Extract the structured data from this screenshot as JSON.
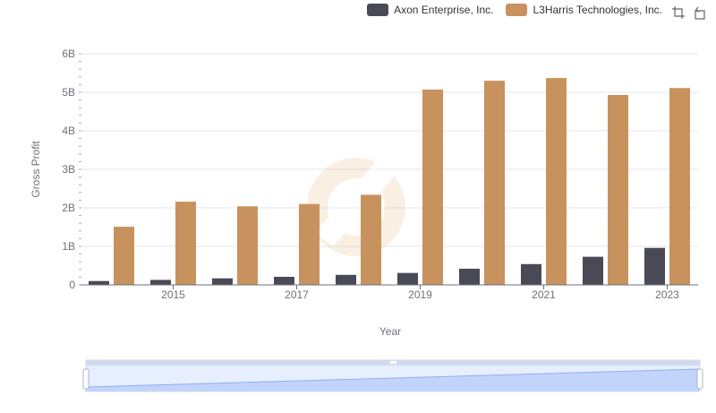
{
  "chart_data": {
    "type": "bar",
    "xlabel": "Year",
    "ylabel": "Gross Profit",
    "categories": [
      "2014",
      "2015",
      "2016",
      "2017",
      "2018",
      "2019",
      "2020",
      "2021",
      "2022",
      "2023"
    ],
    "x_tick_labels": [
      "2015",
      "2017",
      "2019",
      "2021",
      "2023"
    ],
    "y_tick_labels": [
      "0",
      "1B",
      "2B",
      "3B",
      "4B",
      "5B",
      "6B"
    ],
    "ylim": [
      0,
      6000000000
    ],
    "grid": true,
    "legend_position": "top-right",
    "series": [
      {
        "name": "Axon Enterprise, Inc.",
        "color": "#4a4a56",
        "values": [
          100000000,
          130000000,
          170000000,
          210000000,
          260000000,
          310000000,
          420000000,
          540000000,
          730000000,
          960000000
        ]
      },
      {
        "name": "L3Harris Technologies, Inc.",
        "color": "#c8925e",
        "values": [
          1510000000,
          2160000000,
          2040000000,
          2100000000,
          2340000000,
          5070000000,
          5300000000,
          5370000000,
          4930000000,
          5110000000
        ]
      }
    ]
  },
  "toolbox": {
    "zoom_icon": "zoom-icon",
    "restore_icon": "restore-icon"
  },
  "datazoom": {
    "range_start": 0,
    "range_end": 100
  }
}
